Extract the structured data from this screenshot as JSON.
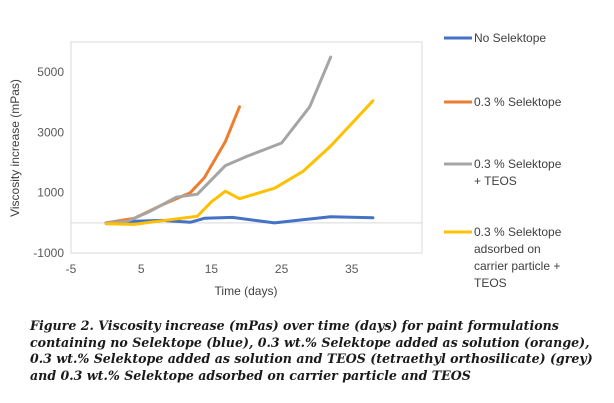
{
  "chart_data": {
    "type": "line",
    "title": "",
    "xlabel": "Time (days)",
    "ylabel": "Viscosity increase  (mPas)",
    "xlim": [
      -5,
      45
    ],
    "ylim": [
      -1000,
      6000
    ],
    "xticks": [
      -5,
      5,
      15,
      25,
      35
    ],
    "yticks": [
      -1000,
      1000,
      3000,
      5000
    ],
    "grid": false,
    "legend_position": "right",
    "series": [
      {
        "name": "No Selektope",
        "color": "#4472C4",
        "x": [
          0,
          4,
          8,
          12,
          14,
          18,
          24,
          28,
          32,
          38
        ],
        "y": [
          0,
          50,
          80,
          20,
          150,
          180,
          0,
          100,
          200,
          170
        ]
      },
      {
        "name": "0.3 % Selektope",
        "color": "#ED7D31",
        "x": [
          0,
          4,
          8,
          12,
          14,
          17,
          19
        ],
        "y": [
          0,
          150,
          600,
          1000,
          1500,
          2700,
          3850
        ]
      },
      {
        "name": "0.3 % Selektope + TEOS",
        "color": "#A5A5A5",
        "x": [
          0,
          3,
          6,
          10,
          13,
          17,
          20,
          25,
          29,
          32
        ],
        "y": [
          0,
          50,
          350,
          850,
          950,
          1900,
          2200,
          2650,
          3850,
          5500
        ]
      },
      {
        "name": "0.3 % Selektope adsorbed on carrier particle + TEOS",
        "color": "#FFC000",
        "x": [
          0,
          4,
          9,
          13,
          15,
          17,
          19,
          24,
          28,
          32,
          38
        ],
        "y": [
          -30,
          -50,
          100,
          220,
          700,
          1050,
          800,
          1150,
          1700,
          2550,
          4050
        ]
      }
    ]
  },
  "legend": {
    "items": [
      {
        "lines": [
          "No Selektope"
        ],
        "color": "#4472C4"
      },
      {
        "lines": [
          "0.3 % Selektope"
        ],
        "color": "#ED7D31"
      },
      {
        "lines": [
          "0.3 % Selektope",
          "+ TEOS"
        ],
        "color": "#A5A5A5"
      },
      {
        "lines": [
          "0.3 % Selektope",
          "adsorbed on",
          "carrier particle +",
          "TEOS"
        ],
        "color": "#FFC000"
      }
    ]
  },
  "caption": {
    "text": "Figure 2. Viscosity increase (mPas) over time (days) for paint formulations containing no Selektope (blue), 0.3 wt.% Selektope added as solution (orange), 0.3 wt.% Selektope added as solution and TEOS (tetraethyl orthosilicate) (grey) and 0.3 wt.% Selektope adsorbed on carrier particle and TEOS"
  }
}
